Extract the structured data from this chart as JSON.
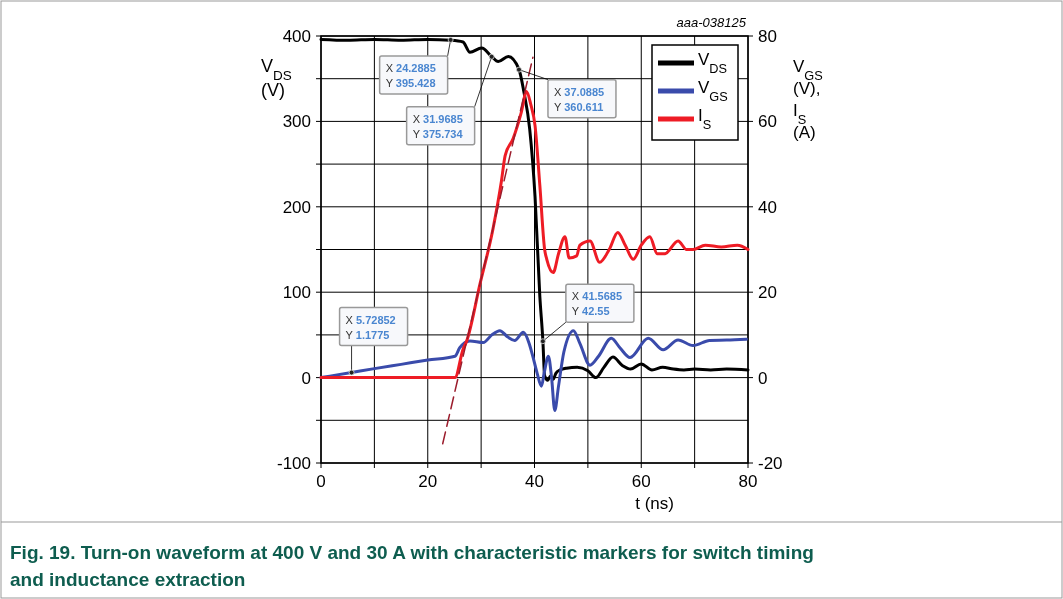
{
  "chart_data": {
    "type": "line",
    "title": "Fig. 19.  Turn-on waveform at 400 V and 30 A with characteristic markers for switch timing\nand inductance extraction",
    "xlabel": "t (ns)",
    "ylabel": "V$_{DS}$\n(V)",
    "y2label": "V$_{GS}$\n(V),\nI$_{S}$\n(A)",
    "xlim": [
      0,
      80
    ],
    "xticks": [
      0,
      {
        "value": 10,
        "label": null
      },
      20,
      {
        "value": 30,
        "label": null
      },
      40,
      {
        "value": 50,
        "label": null
      },
      60,
      {
        "value": 70,
        "label": null
      },
      80
    ],
    "ylim": [
      -100,
      400
    ],
    "yticks": [
      -100,
      {
        "value": -50,
        "label": null
      },
      0,
      {
        "value": 50,
        "label": null
      },
      100,
      {
        "value": 150,
        "label": null
      },
      200,
      {
        "value": 250,
        "label": null
      },
      300,
      {
        "value": 350,
        "label": null
      },
      400
    ],
    "y2lim": [
      -20,
      80
    ],
    "y2ticks": [
      -20,
      0,
      20,
      40,
      60,
      80
    ],
    "grid": true,
    "legend": "top right",
    "line_style": "solid",
    "series": [
      {
        "name": "V$_{DS}$",
        "color": "#000000",
        "x": [
          0,
          5,
          10,
          15,
          20,
          24.29,
          26.6,
          27.9,
          30.1,
          31.97,
          33.2,
          35.1,
          37.09,
          38,
          39.1,
          40.1,
          41,
          41.57,
          41.9,
          42.5,
          43,
          43.5,
          44,
          44.8,
          46,
          48,
          50,
          51.5,
          53,
          54.7,
          56.5,
          58,
          60,
          62,
          64,
          66,
          68,
          70,
          73,
          76,
          80
        ],
        "values": [
          396,
          395,
          396,
          395,
          396,
          395,
          393,
          381,
          386,
          376,
          370,
          376,
          361,
          335,
          291,
          212,
          95,
          43,
          2,
          -3,
          2,
          -2,
          5,
          9,
          11,
          12,
          8,
          0,
          12,
          24,
          14,
          10,
          16,
          9,
          12,
          10,
          9,
          10,
          9,
          10,
          9
        ]
      },
      {
        "name": "V$_{GS}$",
        "color": "#3a4bab",
        "axis": "y2",
        "x": [
          0,
          5.73,
          10,
          15,
          20,
          25.1,
          26,
          27.9,
          30.4,
          32,
          33.5,
          35,
          36.3,
          37.9,
          39,
          39.7,
          40.5,
          41.3,
          41.8,
          42.6,
          43.2,
          43.8,
          44.5,
          45.5,
          47.3,
          48.5,
          50.4,
          52,
          54.4,
          56,
          57.9,
          61.3,
          64.1,
          66.9,
          69.7,
          72.8,
          76,
          79.7
        ],
        "values": [
          0,
          1.2,
          2.1,
          3.1,
          4.1,
          5,
          7,
          8.6,
          8.2,
          10,
          11,
          9.5,
          8.7,
          10.6,
          8,
          4.9,
          1,
          -2,
          1,
          5,
          0,
          -7.7,
          -2,
          6,
          11,
          8,
          2.9,
          5,
          9.2,
          7,
          4.7,
          9.2,
          6.5,
          8.8,
          7.5,
          8.7,
          8.8,
          9
        ]
      },
      {
        "name": "I$_{S}$",
        "color": "#ee1c25",
        "axis": "y2",
        "x": [
          0,
          10,
          20,
          25.1,
          26.6,
          27.3,
          29.8,
          32.2,
          33.8,
          34.5,
          36,
          37.5,
          38.5,
          39.3,
          40.1,
          41,
          41.9,
          42.3,
          43.5,
          44.5,
          45.7,
          46.5,
          47.9,
          48.5,
          50.4,
          52.2,
          54,
          55.6,
          57,
          58.5,
          60,
          61.6,
          63,
          64.4,
          66.9,
          68.5,
          69.7,
          72,
          75,
          78,
          80
        ],
        "values": [
          0,
          0,
          0,
          0,
          6.6,
          8.6,
          22,
          34.7,
          46,
          52,
          56,
          62,
          67,
          64,
          59,
          45,
          30,
          27.7,
          24.6,
          29,
          33,
          28,
          28.5,
          31,
          32,
          27,
          30,
          34,
          31,
          27.7,
          31,
          33,
          29,
          29,
          32,
          30,
          30,
          31,
          30.6,
          31,
          30
        ]
      },
      {
        "type": "line",
        "color": "#9b1c2c",
        "axis": "y2",
        "line_style": "dashed",
        "x": [
          22.8,
          39.7
        ],
        "values": [
          -15.5,
          75
        ]
      }
    ],
    "annotations": [
      {
        "text": "X 24.2885\nY 395.428",
        "x": 24.2885,
        "y": 395.428
      },
      {
        "text": "X 31.9685\nY 375.734",
        "x": 31.9685,
        "y": 375.734
      },
      {
        "text": "X 37.0885\nY 360.611",
        "x": 37.0885,
        "y": 360.611
      },
      {
        "text": "X 5.72852\nY 1.1775",
        "x": 5.72852,
        "y": 5.8875
      },
      {
        "text": "X 41.5685\nY 42.55",
        "x": 41.5685,
        "y": 42.55
      },
      "aaa-038125"
    ]
  }
}
